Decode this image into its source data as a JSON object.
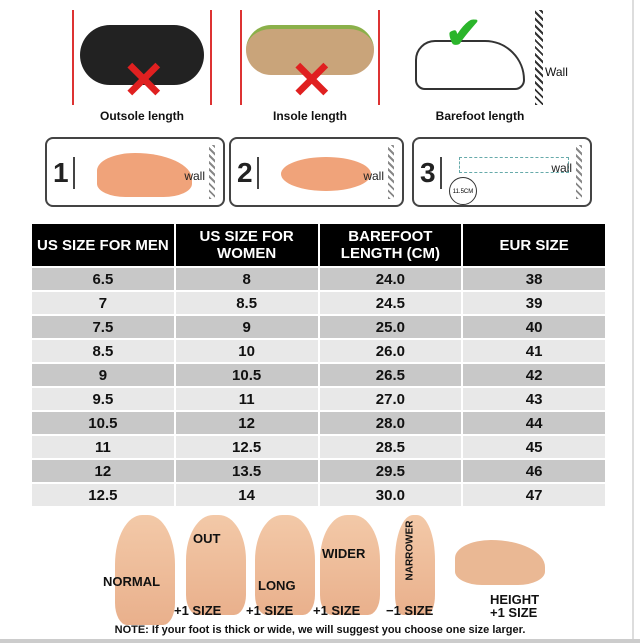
{
  "measure": {
    "panels": [
      {
        "label": "Outsole length",
        "status": "wrong"
      },
      {
        "label": "Insole length",
        "status": "wrong"
      },
      {
        "label": "Barefoot length",
        "status": "correct",
        "wall_label": "Wall"
      }
    ],
    "steps": [
      {
        "number": "1",
        "wall_label": "wall"
      },
      {
        "number": "2",
        "wall_label": "wall"
      },
      {
        "number": "3",
        "wall_label": "wall",
        "measurement": "11.5CM"
      }
    ]
  },
  "table": {
    "headers": [
      "US SIZE FOR MEN",
      "US SIZE FOR WOMEN",
      "BAREFOOT LENGTH (CM)",
      "EUR SIZE"
    ],
    "rows": [
      [
        "6.5",
        "8",
        "24.0",
        "38"
      ],
      [
        "7",
        "8.5",
        "24.5",
        "39"
      ],
      [
        "7.5",
        "9",
        "25.0",
        "40"
      ],
      [
        "8.5",
        "10",
        "26.0",
        "41"
      ],
      [
        "9",
        "10.5",
        "26.5",
        "42"
      ],
      [
        "9.5",
        "11",
        "27.0",
        "43"
      ],
      [
        "10.5",
        "12",
        "28.0",
        "44"
      ],
      [
        "11",
        "12.5",
        "28.5",
        "45"
      ],
      [
        "12",
        "13.5",
        "29.5",
        "46"
      ],
      [
        "12.5",
        "14",
        "30.0",
        "47"
      ]
    ]
  },
  "foot_types": [
    {
      "label": "NORMAL",
      "adjust": ""
    },
    {
      "label": "OUT",
      "adjust": "+1 SIZE"
    },
    {
      "label": "LONG",
      "adjust": "+1 SIZE"
    },
    {
      "label": "WIDER",
      "adjust": "+1 SIZE"
    },
    {
      "label": "NARROWER",
      "adjust": "−1 SIZE"
    },
    {
      "label": "HEIGHT",
      "adjust": "+1 SIZE"
    }
  ],
  "note": "NOTE: If your foot is thick or wide, we will suggest you choose one size larger.",
  "colors": {
    "header_bg": "#000000",
    "row_dark": "#c8c8c8",
    "row_light": "#e8e8e8",
    "wrong": "#e02020",
    "correct": "#2bb52b"
  }
}
